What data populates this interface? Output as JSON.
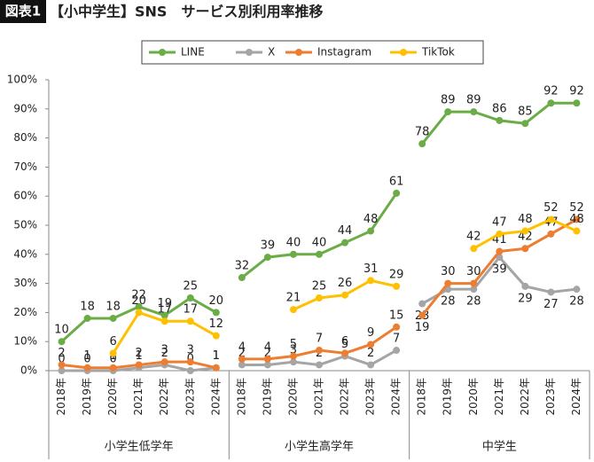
{
  "chart_data": {
    "type": "line",
    "badge": "図表1",
    "title": "【小中学生】SNS　サービス別利用率推移",
    "groups": [
      "小学生低学年",
      "小学生高学年",
      "中学生"
    ],
    "categories": [
      "2018年",
      "2019年",
      "2020年",
      "2021年",
      "2022年",
      "2023年",
      "2024年"
    ],
    "series": [
      {
        "name": "LINE",
        "color": "#6aac46",
        "values": [
          [
            10,
            18,
            18,
            22,
            19,
            25,
            20
          ],
          [
            32,
            39,
            40,
            40,
            44,
            48,
            61
          ],
          [
            78,
            89,
            89,
            86,
            85,
            92,
            92
          ]
        ]
      },
      {
        "name": "X",
        "color": "#a5a5a5",
        "values": [
          [
            0,
            0,
            0,
            1,
            2,
            0,
            1
          ],
          [
            2,
            2,
            3,
            2,
            5,
            2,
            7
          ],
          [
            23,
            28,
            28,
            39,
            29,
            27,
            28
          ]
        ]
      },
      {
        "name": "Instagram",
        "color": "#ed7d31",
        "values": [
          [
            2,
            1,
            1,
            2,
            3,
            3,
            1
          ],
          [
            4,
            4,
            5,
            7,
            6,
            9,
            15
          ],
          [
            19,
            30,
            30,
            41,
            42,
            47,
            52
          ]
        ]
      },
      {
        "name": "TikTok",
        "color": "#ffc000",
        "values": [
          [
            null,
            null,
            6,
            20,
            17,
            17,
            12
          ],
          [
            null,
            null,
            21,
            25,
            26,
            31,
            29
          ],
          [
            null,
            null,
            42,
            47,
            48,
            52,
            48
          ]
        ]
      }
    ],
    "ylim": [
      0,
      100
    ],
    "yticks": [
      {
        "value": 0,
        "label": "0%"
      },
      {
        "value": 10,
        "label": "10%"
      },
      {
        "value": 20,
        "label": "20%"
      },
      {
        "value": 30,
        "label": "30%"
      },
      {
        "value": 40,
        "label": "40%"
      },
      {
        "value": 50,
        "label": "50%"
      },
      {
        "value": 60,
        "label": "60%"
      },
      {
        "value": 70,
        "label": "70%"
      },
      {
        "value": 80,
        "label": "80%"
      },
      {
        "value": 90,
        "label": "90%"
      },
      {
        "value": 100,
        "label": "100%"
      }
    ]
  }
}
